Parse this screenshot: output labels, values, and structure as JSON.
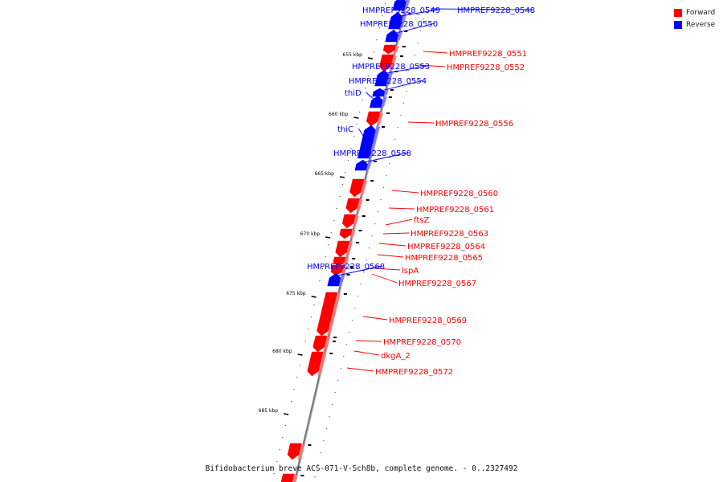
{
  "colors": {
    "forward": "#ff0000",
    "reverse": "#0000ff",
    "backbone": "#777777"
  },
  "legend": [
    {
      "label": "Forward",
      "color": "#ff0000"
    },
    {
      "label": "Reverse",
      "color": "#0000ff"
    }
  ],
  "caption": "Bifidobacterium breve ACS-071-V-Sch8b, complete genome. - 0..2327492",
  "scale": {
    "unit": "kbp",
    "major_ticks": [
      "655 kbp",
      "660 kbp",
      "665 kbp",
      "670 kbp",
      "675 kbp",
      "680 kbp",
      "685 kbp"
    ]
  },
  "genes": [
    {
      "name": "HMPREF9228_0548",
      "strand": "reverse"
    },
    {
      "name": "HMPREF9228_0549",
      "strand": "reverse"
    },
    {
      "name": "HMPREF9228_0550",
      "strand": "reverse"
    },
    {
      "name": "HMPREF9228_0551",
      "strand": "forward"
    },
    {
      "name": "HMPREF9228_0552",
      "strand": "forward"
    },
    {
      "name": "HMPREF9228_0553",
      "strand": "reverse"
    },
    {
      "name": "HMPREF9228_0554",
      "strand": "reverse"
    },
    {
      "name": "thiD",
      "strand": "reverse"
    },
    {
      "name": "HMPREF9228_0556",
      "strand": "forward"
    },
    {
      "name": "thiC",
      "strand": "reverse"
    },
    {
      "name": "HMPREF9228_0558",
      "strand": "reverse"
    },
    {
      "name": "HMPREF9228_0560",
      "strand": "forward"
    },
    {
      "name": "HMPREF9228_0561",
      "strand": "forward"
    },
    {
      "name": "ftsZ",
      "strand": "forward"
    },
    {
      "name": "HMPREF9228_0563",
      "strand": "forward"
    },
    {
      "name": "HMPREF9228_0564",
      "strand": "forward"
    },
    {
      "name": "HMPREF9228_0565",
      "strand": "forward"
    },
    {
      "name": "lspA",
      "strand": "forward"
    },
    {
      "name": "HMPREF9228_0567",
      "strand": "forward"
    },
    {
      "name": "HMPREF9228_0568",
      "strand": "reverse"
    },
    {
      "name": "HMPREF9228_0569",
      "strand": "forward"
    },
    {
      "name": "HMPREF9228_0570",
      "strand": "forward"
    },
    {
      "name": "dkgA_2",
      "strand": "forward"
    },
    {
      "name": "HMPREF9228_0572",
      "strand": "forward"
    }
  ],
  "unlabeled_features": [
    {
      "strand": "forward"
    },
    {
      "strand": "forward"
    }
  ]
}
